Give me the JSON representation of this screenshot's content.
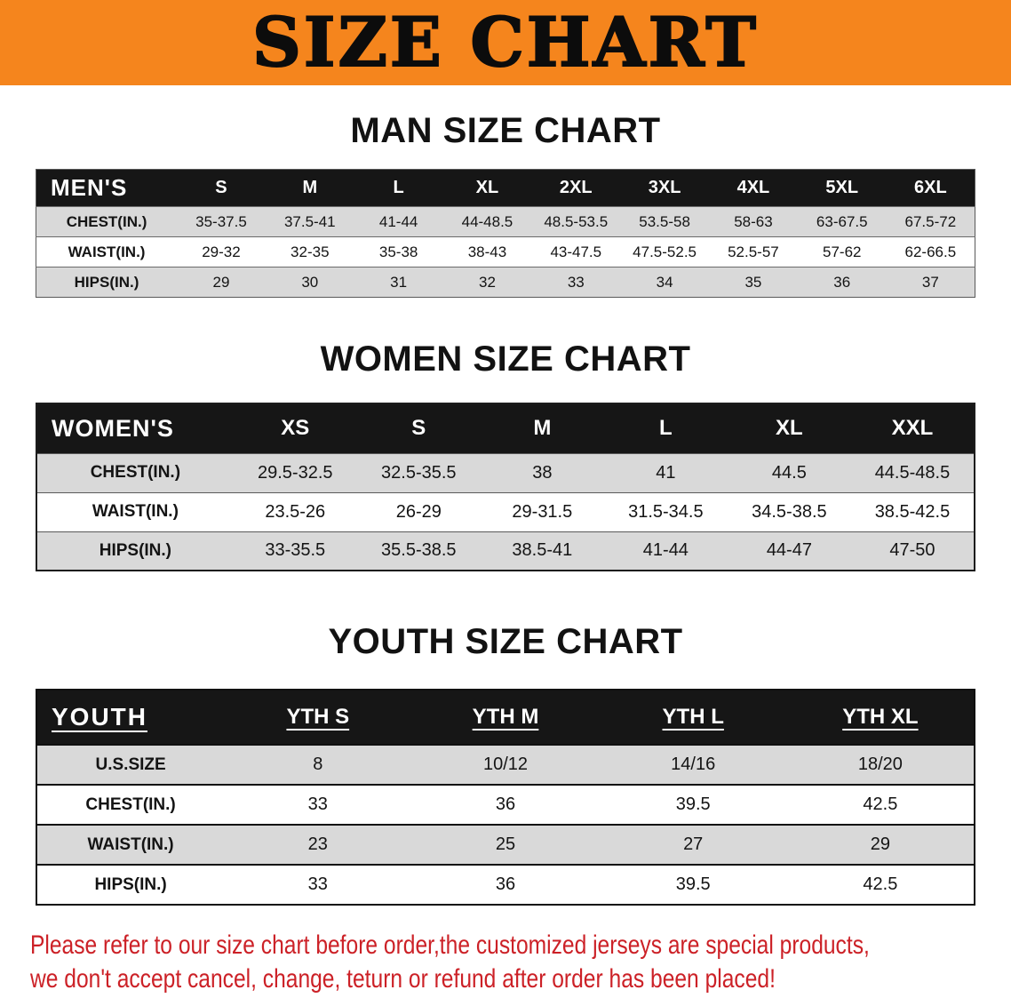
{
  "banner": {
    "title": "SIZE CHART"
  },
  "sections": [
    {
      "title": "MAN SIZE CHART",
      "header_label": "MEN'S",
      "columns": [
        "S",
        "M",
        "L",
        "XL",
        "2XL",
        "3XL",
        "4XL",
        "5XL",
        "6XL"
      ],
      "rows": [
        {
          "label": "CHEST(IN.)",
          "values": [
            "35-37.5",
            "37.5-41",
            "41-44",
            "44-48.5",
            "48.5-53.5",
            "53.5-58",
            "58-63",
            "63-67.5",
            "67.5-72"
          ]
        },
        {
          "label": "WAIST(IN.)",
          "values": [
            "29-32",
            "32-35",
            "35-38",
            "38-43",
            "43-47.5",
            "47.5-52.5",
            "52.5-57",
            "57-62",
            "62-66.5"
          ]
        },
        {
          "label": "HIPS(IN.)",
          "values": [
            "29",
            "30",
            "31",
            "32",
            "33",
            "34",
            "35",
            "36",
            "37"
          ]
        }
      ]
    },
    {
      "title": "WOMEN SIZE CHART",
      "header_label": "WOMEN'S",
      "columns": [
        "XS",
        "S",
        "M",
        "L",
        "XL",
        "XXL"
      ],
      "rows": [
        {
          "label": "CHEST(IN.)",
          "values": [
            "29.5-32.5",
            "32.5-35.5",
            "38",
            "41",
            "44.5",
            "44.5-48.5"
          ]
        },
        {
          "label": "WAIST(IN.)",
          "values": [
            "23.5-26",
            "26-29",
            "29-31.5",
            "31.5-34.5",
            "34.5-38.5",
            "38.5-42.5"
          ]
        },
        {
          "label": "HIPS(IN.)",
          "values": [
            "33-35.5",
            "35.5-38.5",
            "38.5-41",
            "41-44",
            "44-47",
            "47-50"
          ]
        }
      ]
    },
    {
      "title": "YOUTH SIZE CHART",
      "header_label": "YOUTH",
      "columns": [
        "YTH S",
        "YTH M",
        "YTH L",
        "YTH XL"
      ],
      "rows": [
        {
          "label": "U.S.SIZE",
          "values": [
            "8",
            "10/12",
            "14/16",
            "18/20"
          ]
        },
        {
          "label": "CHEST(IN.)",
          "values": [
            "33",
            "36",
            "39.5",
            "42.5"
          ]
        },
        {
          "label": "WAIST(IN.)",
          "values": [
            "23",
            "25",
            "27",
            "29"
          ]
        },
        {
          "label": "HIPS(IN.)",
          "values": [
            "33",
            "36",
            "39.5",
            "42.5"
          ]
        }
      ]
    }
  ],
  "footer": {
    "line1": "Please refer to our size chart before order,the customized jerseys are special products,",
    "line2": "we don't accept cancel, change, teturn or refund after order has been placed!"
  },
  "colors": {
    "banner_orange": "#F5851D",
    "table_header_black": "#161616",
    "stripe_gray": "#D9D9D9",
    "footer_red": "#CC2127"
  }
}
